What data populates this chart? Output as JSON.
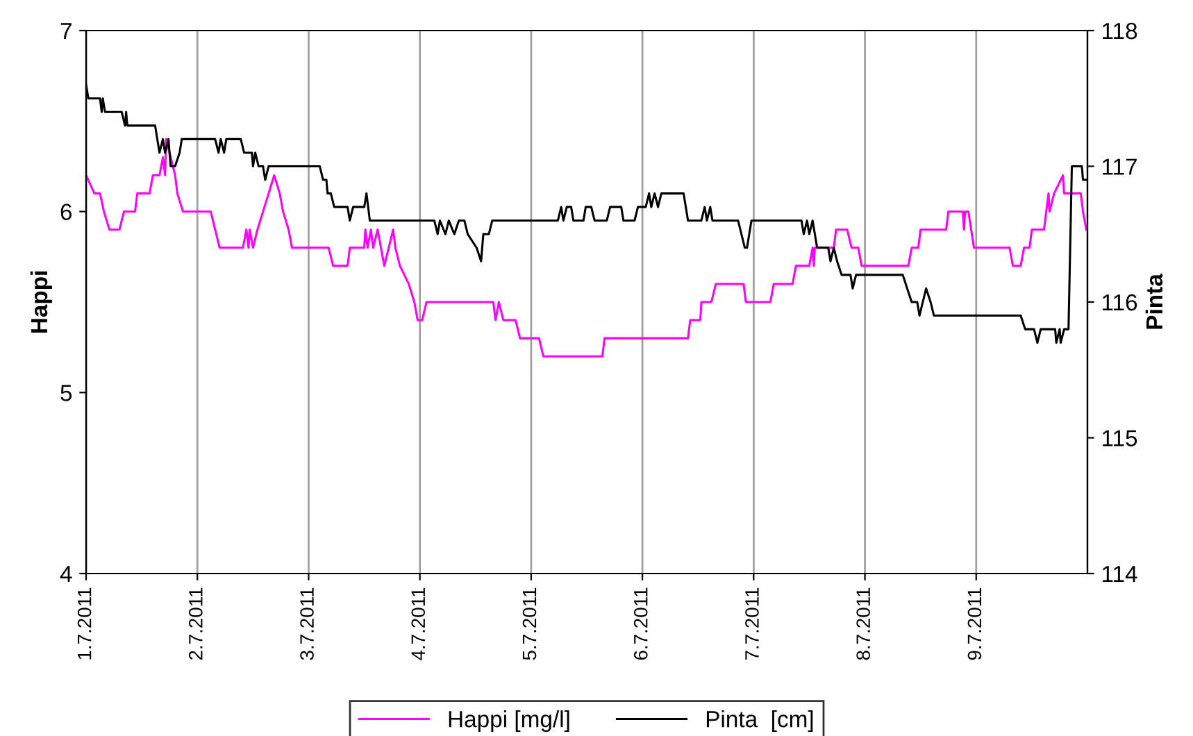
{
  "chart_data": {
    "type": "line",
    "ylabel": "Happi",
    "y2label": "Pinta",
    "xlim": [
      "2011-07-01",
      "2011-07-10"
    ],
    "xticks": [
      {
        "value": "2011-07-01",
        "label": "1.7.2011"
      },
      {
        "value": "2011-07-02",
        "label": "2.7.2011"
      },
      {
        "value": "2011-07-03",
        "label": "3.7.2011"
      },
      {
        "value": "2011-07-04",
        "label": "4.7.2011"
      },
      {
        "value": "2011-07-05",
        "label": "5.7.2011"
      },
      {
        "value": "2011-07-06",
        "label": "6.7.2011"
      },
      {
        "value": "2011-07-07",
        "label": "7.7.2011"
      },
      {
        "value": "2011-07-08",
        "label": "8.7.2011"
      },
      {
        "value": "2011-07-09",
        "label": "9.7.2011"
      }
    ],
    "ylim": [
      4,
      7
    ],
    "yticks": [
      4,
      5,
      6,
      7
    ],
    "y2lim": [
      114,
      118
    ],
    "y2ticks": [
      114,
      115,
      116,
      117,
      118
    ],
    "grid": "x",
    "legend": "bottom",
    "marker": "none",
    "line_style": "solid",
    "series": [
      {
        "name": "Happi [mg/l]",
        "color": "#ff00ff",
        "x": [
          "2011-07-01T00:00",
          "2011-07-01T01:48",
          "2011-07-01T03:00",
          "2011-07-01T03:50",
          "2011-07-01T05:02",
          "2011-07-01T07:12",
          "2011-07-01T08:10",
          "2011-07-01T10:34",
          "2011-07-01T11:02",
          "2011-07-01T13:41",
          "2011-07-01T14:24",
          "2011-07-01T15:50",
          "2011-07-01T16:34",
          "2011-07-01T17:02",
          "2011-07-01T17:17",
          "2011-07-01T18:14",
          "2011-07-01T19:12",
          "2011-07-01T19:41",
          "2011-07-01T20:53",
          "2011-07-02T02:53",
          "2011-07-02T03:50",
          "2011-07-02T04:48",
          "2011-07-02T09:50",
          "2011-07-02T10:34",
          "2011-07-02T11:02",
          "2011-07-02T11:17",
          "2011-07-02T12:00",
          "2011-07-02T12:58",
          "2011-07-02T14:10",
          "2011-07-02T15:22",
          "2011-07-02T16:34",
          "2011-07-02T17:46",
          "2011-07-02T18:29",
          "2011-07-02T19:41",
          "2011-07-02T20:24",
          "2011-07-03T04:19",
          "2011-07-03T05:17",
          "2011-07-03T08:24",
          "2011-07-03T08:53",
          "2011-07-03T12:00",
          "2011-07-03T12:14",
          "2011-07-03T12:43",
          "2011-07-03T13:26",
          "2011-07-03T13:55",
          "2011-07-03T14:53",
          "2011-07-03T15:36",
          "2011-07-03T16:19",
          "2011-07-03T17:17",
          "2011-07-03T18:14",
          "2011-07-03T18:43",
          "2011-07-03T19:41",
          "2011-07-03T21:36",
          "2011-07-03T22:48",
          "2011-07-03T23:31",
          "2011-07-04T00:29",
          "2011-07-04T01:26",
          "2011-07-04T15:50",
          "2011-07-04T16:19",
          "2011-07-04T17:02",
          "2011-07-04T18:00",
          "2011-07-04T20:38",
          "2011-07-04T21:36",
          "2011-07-05T01:41",
          "2011-07-05T02:38",
          "2011-07-05T15:22",
          "2011-07-05T15:50",
          "2011-07-06T09:50",
          "2011-07-06T10:19",
          "2011-07-06T12:29",
          "2011-07-06T12:43",
          "2011-07-06T14:53",
          "2011-07-06T15:50",
          "2011-07-06T21:50",
          "2011-07-06T22:19",
          "2011-07-07T03:36",
          "2011-07-07T04:19",
          "2011-07-07T08:24",
          "2011-07-07T09:07",
          "2011-07-07T12:00",
          "2011-07-07T12:43",
          "2011-07-07T12:58",
          "2011-07-07T13:12",
          "2011-07-07T17:17",
          "2011-07-07T17:46",
          "2011-07-07T20:10",
          "2011-07-07T21:07",
          "2011-07-07T22:34",
          "2011-07-07T23:17",
          "2011-07-08T09:22",
          "2011-07-08T10:05",
          "2011-07-08T11:31",
          "2011-07-08T12:00",
          "2011-07-08T17:31",
          "2011-07-08T18:00",
          "2011-07-08T21:07",
          "2011-07-08T21:22",
          "2011-07-08T21:36",
          "2011-07-08T22:19",
          "2011-07-08T23:31",
          "2011-07-09T07:12",
          "2011-07-09T07:55",
          "2011-07-09T09:36",
          "2011-07-09T10:19",
          "2011-07-09T11:31",
          "2011-07-09T12:00",
          "2011-07-09T14:38",
          "2011-07-09T15:36",
          "2011-07-09T15:50",
          "2011-07-09T16:48",
          "2011-07-09T18:43",
          "2011-07-09T18:58",
          "2011-07-09T22:34",
          "2011-07-09T23:02",
          "2011-07-09T23:46"
        ],
        "values": [
          6.2,
          6.1,
          6.1,
          6.0,
          5.9,
          5.9,
          6.0,
          6.0,
          6.1,
          6.1,
          6.2,
          6.2,
          6.3,
          6.2,
          6.4,
          6.3,
          6.2,
          6.1,
          6.0,
          6.0,
          5.9,
          5.8,
          5.8,
          5.9,
          5.8,
          5.9,
          5.8,
          5.9,
          6.0,
          6.1,
          6.2,
          6.1,
          6.0,
          5.9,
          5.8,
          5.8,
          5.7,
          5.7,
          5.8,
          5.8,
          5.9,
          5.8,
          5.9,
          5.8,
          5.9,
          5.8,
          5.7,
          5.8,
          5.9,
          5.8,
          5.7,
          5.6,
          5.5,
          5.4,
          5.4,
          5.5,
          5.5,
          5.4,
          5.5,
          5.4,
          5.4,
          5.3,
          5.3,
          5.2,
          5.2,
          5.3,
          5.3,
          5.4,
          5.4,
          5.5,
          5.5,
          5.6,
          5.6,
          5.5,
          5.5,
          5.6,
          5.6,
          5.7,
          5.7,
          5.8,
          5.7,
          5.8,
          5.8,
          5.9,
          5.9,
          5.8,
          5.8,
          5.7,
          5.7,
          5.8,
          5.8,
          5.9,
          5.9,
          6.0,
          6.0,
          5.9,
          6.0,
          6.0,
          5.8,
          5.8,
          5.7,
          5.7,
          5.8,
          5.8,
          5.9,
          5.9,
          6.1,
          6.0,
          6.1,
          6.2,
          6.1,
          6.1,
          6.0,
          5.9
        ]
      },
      {
        "name": "Pinta  [cm]",
        "color": "#000000",
        "axis": "y2",
        "x": [
          "2011-07-01T00:00",
          "2011-07-01T00:29",
          "2011-07-01T03:00",
          "2011-07-01T03:22",
          "2011-07-01T03:36",
          "2011-07-01T04:05",
          "2011-07-01T07:41",
          "2011-07-01T08:24",
          "2011-07-01T08:38",
          "2011-07-01T08:53",
          "2011-07-01T14:53",
          "2011-07-01T15:50",
          "2011-07-01T16:34",
          "2011-07-01T17:02",
          "2011-07-01T17:46",
          "2011-07-01T18:14",
          "2011-07-01T19:12",
          "2011-07-01T20:10",
          "2011-07-01T20:38",
          "2011-07-02T03:50",
          "2011-07-02T04:34",
          "2011-07-02T05:02",
          "2011-07-02T05:46",
          "2011-07-02T06:14",
          "2011-07-02T09:22",
          "2011-07-02T10:05",
          "2011-07-02T11:46",
          "2011-07-02T12:00",
          "2011-07-02T12:29",
          "2011-07-02T13:12",
          "2011-07-02T14:10",
          "2011-07-02T14:38",
          "2011-07-02T15:22",
          "2011-07-03T02:24",
          "2011-07-03T03:07",
          "2011-07-03T03:50",
          "2011-07-03T04:05",
          "2011-07-03T04:48",
          "2011-07-03T05:31",
          "2011-07-03T08:24",
          "2011-07-03T08:53",
          "2011-07-03T09:36",
          "2011-07-03T12:00",
          "2011-07-03T12:29",
          "2011-07-03T13:12",
          "2011-07-04T03:07",
          "2011-07-04T03:50",
          "2011-07-04T04:19",
          "2011-07-04T05:31",
          "2011-07-04T06:14",
          "2011-07-04T07:26",
          "2011-07-04T08:24",
          "2011-07-04T09:36",
          "2011-07-04T10:19",
          "2011-07-04T12:14",
          "2011-07-04T13:12",
          "2011-07-04T13:41",
          "2011-07-04T14:53",
          "2011-07-04T15:36",
          "2011-07-05T05:46",
          "2011-07-05T06:29",
          "2011-07-05T06:58",
          "2011-07-05T07:41",
          "2011-07-05T08:38",
          "2011-07-05T09:07",
          "2011-07-05T11:17",
          "2011-07-05T11:46",
          "2011-07-05T12:58",
          "2011-07-05T13:41",
          "2011-07-05T16:19",
          "2011-07-05T17:02",
          "2011-07-05T19:26",
          "2011-07-05T19:55",
          "2011-07-05T22:19",
          "2011-07-05T23:02",
          "2011-07-06T00:43",
          "2011-07-06T01:26",
          "2011-07-06T01:55",
          "2011-07-06T02:38",
          "2011-07-06T03:22",
          "2011-07-06T04:05",
          "2011-07-06T08:53",
          "2011-07-06T09:50",
          "2011-07-06T12:43",
          "2011-07-06T13:26",
          "2011-07-06T13:55",
          "2011-07-06T14:38",
          "2011-07-06T15:07",
          "2011-07-06T20:38",
          "2011-07-06T21:22",
          "2011-07-06T22:05",
          "2011-07-06T22:34",
          "2011-07-06T23:31",
          "2011-07-07T10:19",
          "2011-07-07T10:48",
          "2011-07-07T11:31",
          "2011-07-07T12:00",
          "2011-07-07T12:43",
          "2011-07-07T13:41",
          "2011-07-07T16:05",
          "2011-07-07T16:34",
          "2011-07-07T17:17",
          "2011-07-07T18:00",
          "2011-07-07T18:58",
          "2011-07-07T20:53",
          "2011-07-07T21:22",
          "2011-07-07T22:05",
          "2011-07-08T08:10",
          "2011-07-08T09:07",
          "2011-07-08T10:05",
          "2011-07-08T11:17",
          "2011-07-08T11:46",
          "2011-07-08T12:29",
          "2011-07-08T13:12",
          "2011-07-08T14:10",
          "2011-07-08T14:53",
          "2011-07-09T09:36",
          "2011-07-09T10:34",
          "2011-07-09T12:29",
          "2011-07-09T13:12",
          "2011-07-09T13:55",
          "2011-07-09T17:02",
          "2011-07-09T17:17",
          "2011-07-09T18:00",
          "2011-07-09T18:14",
          "2011-07-09T18:58",
          "2011-07-09T19:55",
          "2011-07-09T20:38",
          "2011-07-09T22:48",
          "2011-07-09T23:02",
          "2011-07-09T23:46"
        ],
        "values": [
          117.6,
          117.5,
          117.5,
          117.4,
          117.5,
          117.4,
          117.4,
          117.3,
          117.4,
          117.3,
          117.3,
          117.1,
          117.2,
          117.1,
          117.2,
          117.0,
          117.0,
          117.1,
          117.2,
          117.2,
          117.1,
          117.2,
          117.1,
          117.2,
          117.2,
          117.1,
          117.1,
          117.0,
          117.1,
          117.0,
          117.0,
          116.9,
          117.0,
          117.0,
          116.9,
          116.9,
          116.8,
          116.8,
          116.7,
          116.7,
          116.6,
          116.7,
          116.7,
          116.8,
          116.6,
          116.6,
          116.5,
          116.6,
          116.5,
          116.6,
          116.5,
          116.6,
          116.6,
          116.5,
          116.4,
          116.3,
          116.5,
          116.5,
          116.6,
          116.6,
          116.7,
          116.6,
          116.7,
          116.7,
          116.6,
          116.6,
          116.7,
          116.7,
          116.6,
          116.6,
          116.7,
          116.7,
          116.6,
          116.6,
          116.7,
          116.7,
          116.8,
          116.7,
          116.8,
          116.7,
          116.8,
          116.8,
          116.6,
          116.6,
          116.7,
          116.6,
          116.7,
          116.6,
          116.6,
          116.5,
          116.4,
          116.4,
          116.6,
          116.6,
          116.5,
          116.6,
          116.5,
          116.6,
          116.4,
          116.4,
          116.3,
          116.4,
          116.3,
          116.2,
          116.2,
          116.1,
          116.2,
          116.2,
          116.1,
          116.0,
          116.0,
          115.9,
          116.0,
          116.1,
          116.0,
          115.9,
          115.9,
          115.8,
          115.8,
          115.7,
          115.8,
          115.8,
          115.7,
          115.8,
          115.7,
          115.8,
          115.8,
          117.0,
          117.0,
          116.9,
          116.9
        ]
      }
    ]
  }
}
